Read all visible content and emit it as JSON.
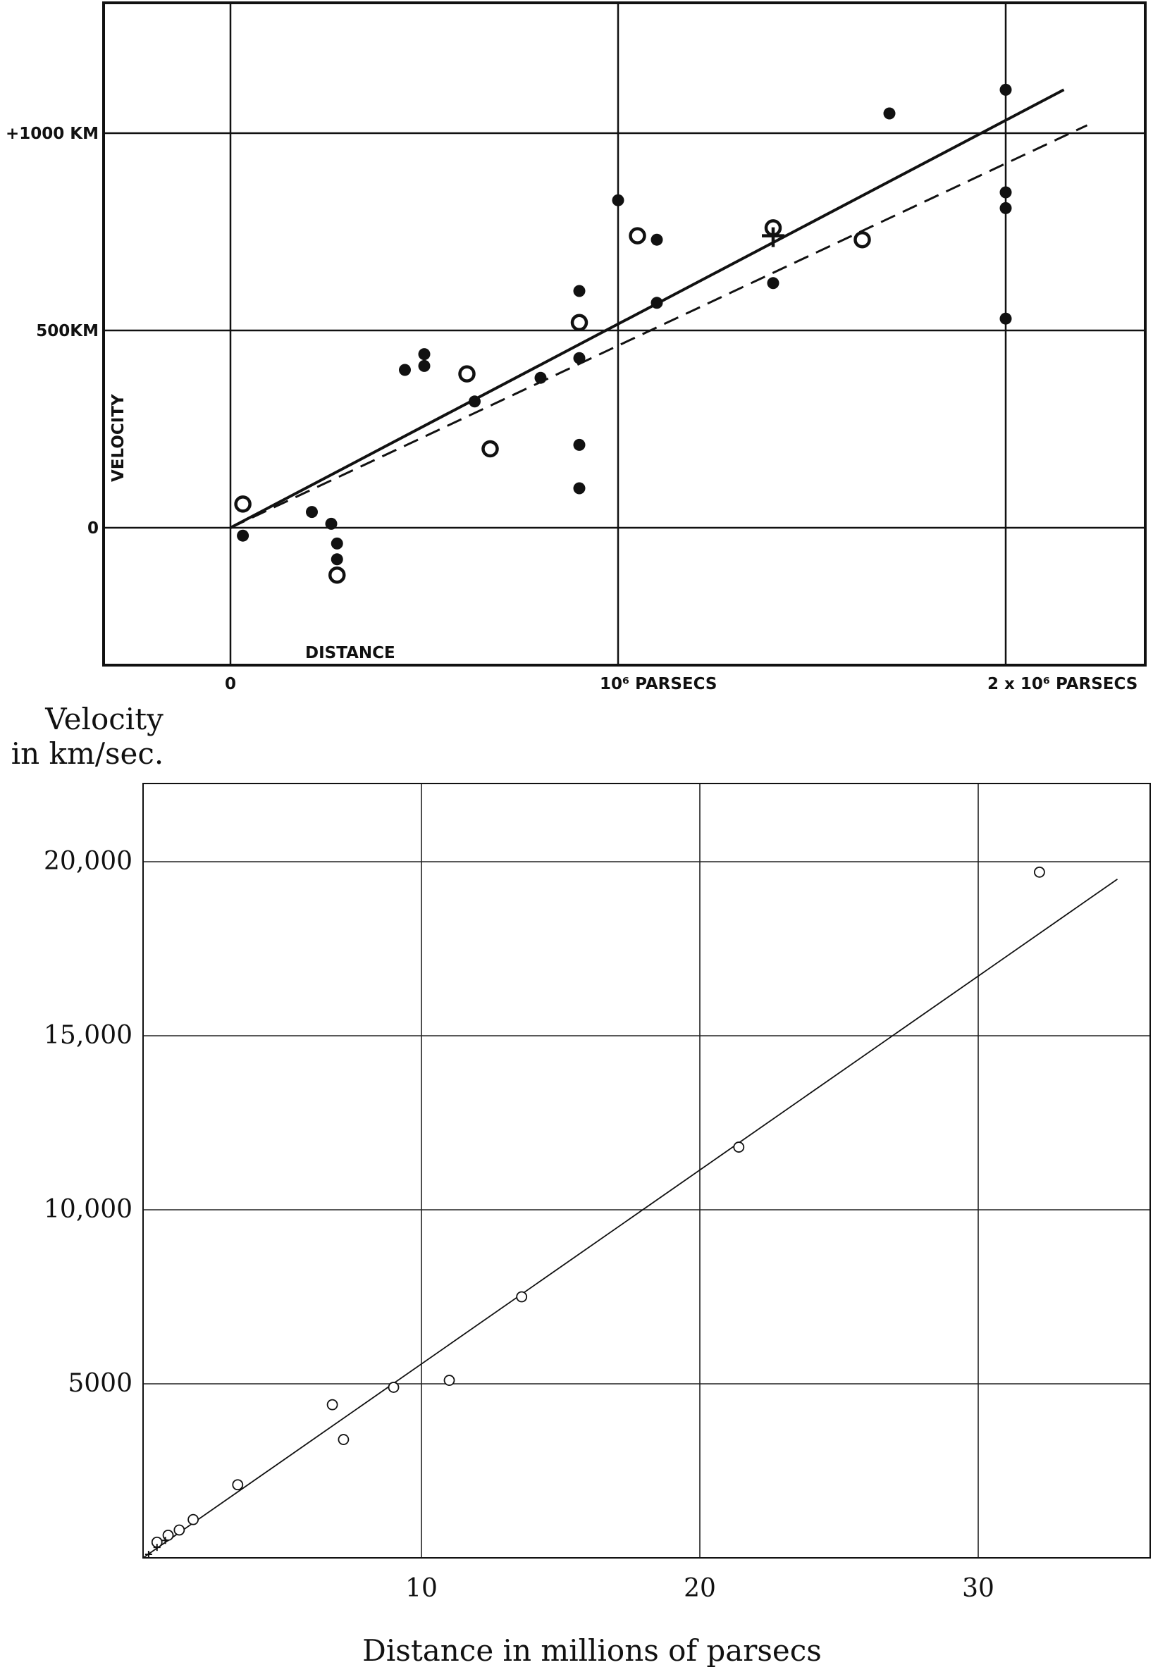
{
  "chart_data": [
    {
      "type": "scatter",
      "title": "",
      "xlabel": "DISTANCE",
      "ylabel": "VELOCITY",
      "x_unit": "parsecs",
      "y_unit": "km/sec",
      "xlim": [
        -330000,
        2320000
      ],
      "ylim": [
        -340000,
        1330
      ],
      "ylim_note": "",
      "x_ticks": [
        {
          "value": 0,
          "label": "0"
        },
        {
          "value": 1000000,
          "label": "10⁶ PARSECS"
        },
        {
          "value": 2000000,
          "label": "2 x 10⁶ PARSECS"
        }
      ],
      "y_ticks": [
        {
          "value": 0,
          "label": "0"
        },
        {
          "value": 500,
          "label": "500KM"
        },
        {
          "value": 1000,
          "label": "+1000 KM"
        }
      ],
      "grid": true,
      "series": [
        {
          "marker": "filled-circle",
          "x": [
            32000,
            210000,
            260000,
            275000,
            275000,
            450000,
            500000,
            500000,
            630000,
            800000,
            900000,
            900000,
            900000,
            900000,
            1000000,
            1100000,
            1100000,
            1400000,
            1700000,
            2000000,
            2000000,
            2000000,
            2000000
          ],
          "y": [
            -20,
            40,
            10,
            -40,
            -80,
            400,
            410,
            440,
            320,
            380,
            100,
            210,
            430,
            600,
            830,
            570,
            730,
            620,
            1050,
            530,
            810,
            850,
            1110
          ]
        },
        {
          "marker": "open-circle",
          "x": [
            32000,
            275000,
            610000,
            670000,
            900000,
            1050000,
            1400000,
            1630000
          ],
          "y": [
            60,
            -120,
            390,
            200,
            520,
            740,
            760,
            730
          ]
        },
        {
          "marker": "cross",
          "x": [
            1400000
          ],
          "y": [
            740
          ]
        }
      ],
      "fit_lines": [
        {
          "style": "solid",
          "x": [
            0,
            2150000
          ],
          "y": [
            0,
            1110
          ]
        },
        {
          "style": "dashed",
          "x": [
            0,
            2210000
          ],
          "y": [
            0,
            1020
          ]
        }
      ]
    },
    {
      "type": "scatter",
      "title": "",
      "xlabel": "Distance in millions of parsecs",
      "ylabel": "Velocity in km/sec.",
      "xlim": [
        0,
        36
      ],
      "ylim": [
        0,
        22000
      ],
      "x_ticks": [
        {
          "value": 10,
          "label": "10"
        },
        {
          "value": 20,
          "label": "20"
        },
        {
          "value": 30,
          "label": "30"
        }
      ],
      "y_ticks": [
        {
          "value": 5000,
          "label": "5000"
        },
        {
          "value": 10000,
          "label": "10,000"
        },
        {
          "value": 15000,
          "label": "15,000"
        },
        {
          "value": 20000,
          "label": "20,000"
        }
      ],
      "grid": true,
      "series": [
        {
          "marker": "open-circle",
          "x": [
            0.5,
            0.9,
            1.3,
            1.8,
            3.4,
            6.8,
            7.2,
            9.0,
            11.0,
            13.6,
            21.4,
            32.2
          ],
          "y": [
            450,
            650,
            800,
            1100,
            2100,
            4400,
            3400,
            4900,
            5100,
            7500,
            11800,
            19700
          ]
        },
        {
          "marker": "cross",
          "x": [
            0.2,
            0.5,
            0.8
          ],
          "y": [
            100,
            300,
            500
          ]
        }
      ],
      "fit_lines": [
        {
          "style": "solid",
          "x": [
            0,
            35
          ],
          "y": [
            0,
            19500
          ]
        }
      ]
    }
  ]
}
